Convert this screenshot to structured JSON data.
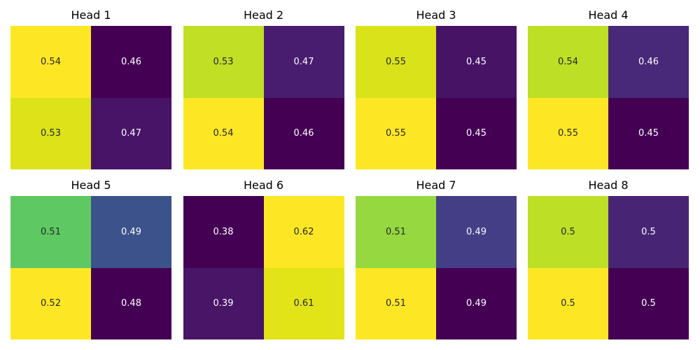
{
  "chart_data": [
    {
      "type": "heatmap",
      "title": "Head 1",
      "values": [
        [
          0.54,
          0.46
        ],
        [
          0.53,
          0.47
        ]
      ],
      "colors": [
        [
          "#fde725",
          "#440154"
        ],
        [
          "#dde318",
          "#481467"
        ]
      ],
      "text_colors": [
        [
          "#262626",
          "#ffffff"
        ],
        [
          "#262626",
          "#ffffff"
        ]
      ]
    },
    {
      "type": "heatmap",
      "title": "Head 2",
      "values": [
        [
          0.53,
          0.47
        ],
        [
          0.54,
          0.46
        ]
      ],
      "colors": [
        [
          "#c0df25",
          "#481c6e"
        ],
        [
          "#fde725",
          "#440154"
        ]
      ],
      "text_colors": [
        [
          "#262626",
          "#ffffff"
        ],
        [
          "#262626",
          "#ffffff"
        ]
      ]
    },
    {
      "type": "heatmap",
      "title": "Head 3",
      "values": [
        [
          0.55,
          0.45
        ],
        [
          0.55,
          0.45
        ]
      ],
      "colors": [
        [
          "#dae319",
          "#471365"
        ],
        [
          "#fde725",
          "#440154"
        ]
      ],
      "text_colors": [
        [
          "#262626",
          "#ffffff"
        ],
        [
          "#262626",
          "#ffffff"
        ]
      ]
    },
    {
      "type": "heatmap",
      "title": "Head 4",
      "values": [
        [
          0.54,
          0.46
        ],
        [
          0.55,
          0.45
        ]
      ],
      "colors": [
        [
          "#bddf26",
          "#482878"
        ],
        [
          "#fde725",
          "#440154"
        ]
      ],
      "text_colors": [
        [
          "#262626",
          "#ffffff"
        ],
        [
          "#262626",
          "#ffffff"
        ]
      ]
    },
    {
      "type": "heatmap",
      "title": "Head 5",
      "values": [
        [
          0.51,
          0.49
        ],
        [
          0.52,
          0.48
        ]
      ],
      "colors": [
        [
          "#5ec962",
          "#3b528b"
        ],
        [
          "#fde725",
          "#440154"
        ]
      ],
      "text_colors": [
        [
          "#262626",
          "#ffffff"
        ],
        [
          "#262626",
          "#ffffff"
        ]
      ]
    },
    {
      "type": "heatmap",
      "title": "Head 6",
      "values": [
        [
          0.38,
          0.62
        ],
        [
          0.39,
          0.61
        ]
      ],
      "colors": [
        [
          "#440154",
          "#fde725"
        ],
        [
          "#481567",
          "#e2e418"
        ]
      ],
      "text_colors": [
        [
          "#ffffff",
          "#262626"
        ],
        [
          "#ffffff",
          "#262626"
        ]
      ]
    },
    {
      "type": "heatmap",
      "title": "Head 7",
      "values": [
        [
          0.51,
          0.49
        ],
        [
          0.51,
          0.49
        ]
      ],
      "colors": [
        [
          "#95d840",
          "#433e85"
        ],
        [
          "#fde725",
          "#440154"
        ]
      ],
      "text_colors": [
        [
          "#262626",
          "#ffffff"
        ],
        [
          "#262626",
          "#ffffff"
        ]
      ]
    },
    {
      "type": "heatmap",
      "title": "Head 8",
      "values": [
        [
          0.5,
          0.5
        ],
        [
          0.5,
          0.5
        ]
      ],
      "colors": [
        [
          "#bddf26",
          "#482475"
        ],
        [
          "#fde725",
          "#440154"
        ]
      ],
      "text_colors": [
        [
          "#262626",
          "#ffffff"
        ],
        [
          "#262626",
          "#ffffff"
        ]
      ]
    }
  ]
}
